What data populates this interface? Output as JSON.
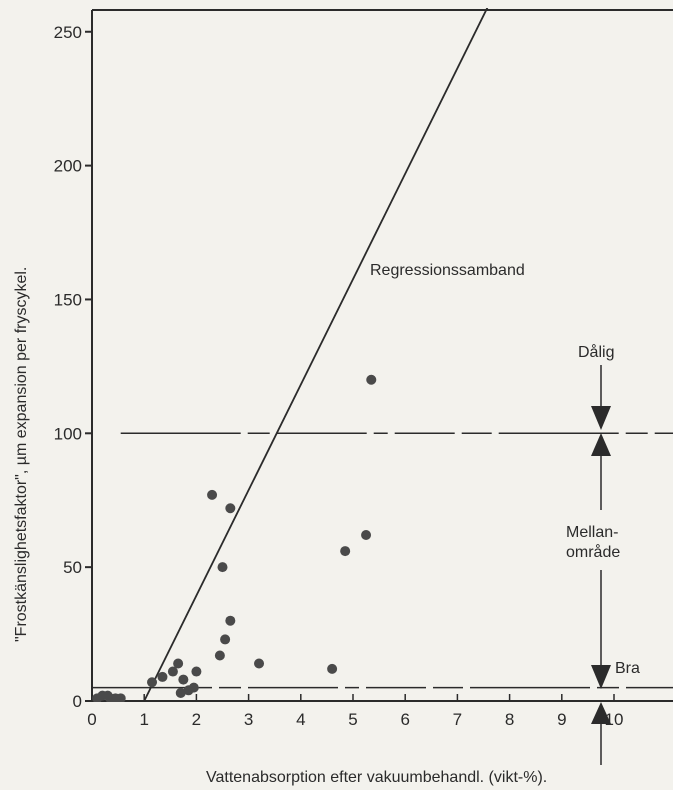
{
  "chart_data": {
    "type": "scatter",
    "title": "",
    "xlabel": "Vattenabsorption efter vakuumbehandl. (vikt-%).",
    "ylabel": "\"Frostkänslighetsfaktor\", µm expansion per fryscykel.",
    "xlim": [
      0,
      11
    ],
    "ylim": [
      0,
      260
    ],
    "x_ticks": [
      "0",
      "1",
      "2",
      "3",
      "4",
      "5",
      "6",
      "7",
      "8",
      "9",
      "10"
    ],
    "y_ticks": [
      "0",
      "50",
      "100",
      "150",
      "200",
      "250"
    ],
    "grid": false,
    "points": [
      {
        "x": 0.1,
        "y": 1
      },
      {
        "x": 0.2,
        "y": 2
      },
      {
        "x": 0.3,
        "y": 2
      },
      {
        "x": 0.35,
        "y": 1
      },
      {
        "x": 0.45,
        "y": 1
      },
      {
        "x": 0.55,
        "y": 1
      },
      {
        "x": 1.15,
        "y": 7
      },
      {
        "x": 1.35,
        "y": 9
      },
      {
        "x": 1.55,
        "y": 11
      },
      {
        "x": 1.65,
        "y": 14
      },
      {
        "x": 1.7,
        "y": 3
      },
      {
        "x": 1.75,
        "y": 8
      },
      {
        "x": 1.85,
        "y": 4
      },
      {
        "x": 1.95,
        "y": 5
      },
      {
        "x": 2.0,
        "y": 11
      },
      {
        "x": 2.3,
        "y": 77
      },
      {
        "x": 2.45,
        "y": 17
      },
      {
        "x": 2.5,
        "y": 50
      },
      {
        "x": 2.55,
        "y": 23
      },
      {
        "x": 2.65,
        "y": 30
      },
      {
        "x": 2.65,
        "y": 72
      },
      {
        "x": 3.2,
        "y": 14
      },
      {
        "x": 4.6,
        "y": 12
      },
      {
        "x": 4.85,
        "y": 56
      },
      {
        "x": 5.25,
        "y": 62
      },
      {
        "x": 5.35,
        "y": 120
      }
    ],
    "regression_line": {
      "label": "Regressionssamband",
      "x": [
        1.0,
        7.6
      ],
      "y": [
        0,
        260
      ]
    },
    "threshold_lines": [
      {
        "y": 100,
        "style": "dash-dot",
        "x_start": 0.55
      },
      {
        "y": 5,
        "style": "dash-dot",
        "x_start": 0
      }
    ],
    "annotations": {
      "poor": "Dålig",
      "middle_line1": "Mellan-",
      "middle_line2": "område",
      "good": "Bra"
    }
  }
}
